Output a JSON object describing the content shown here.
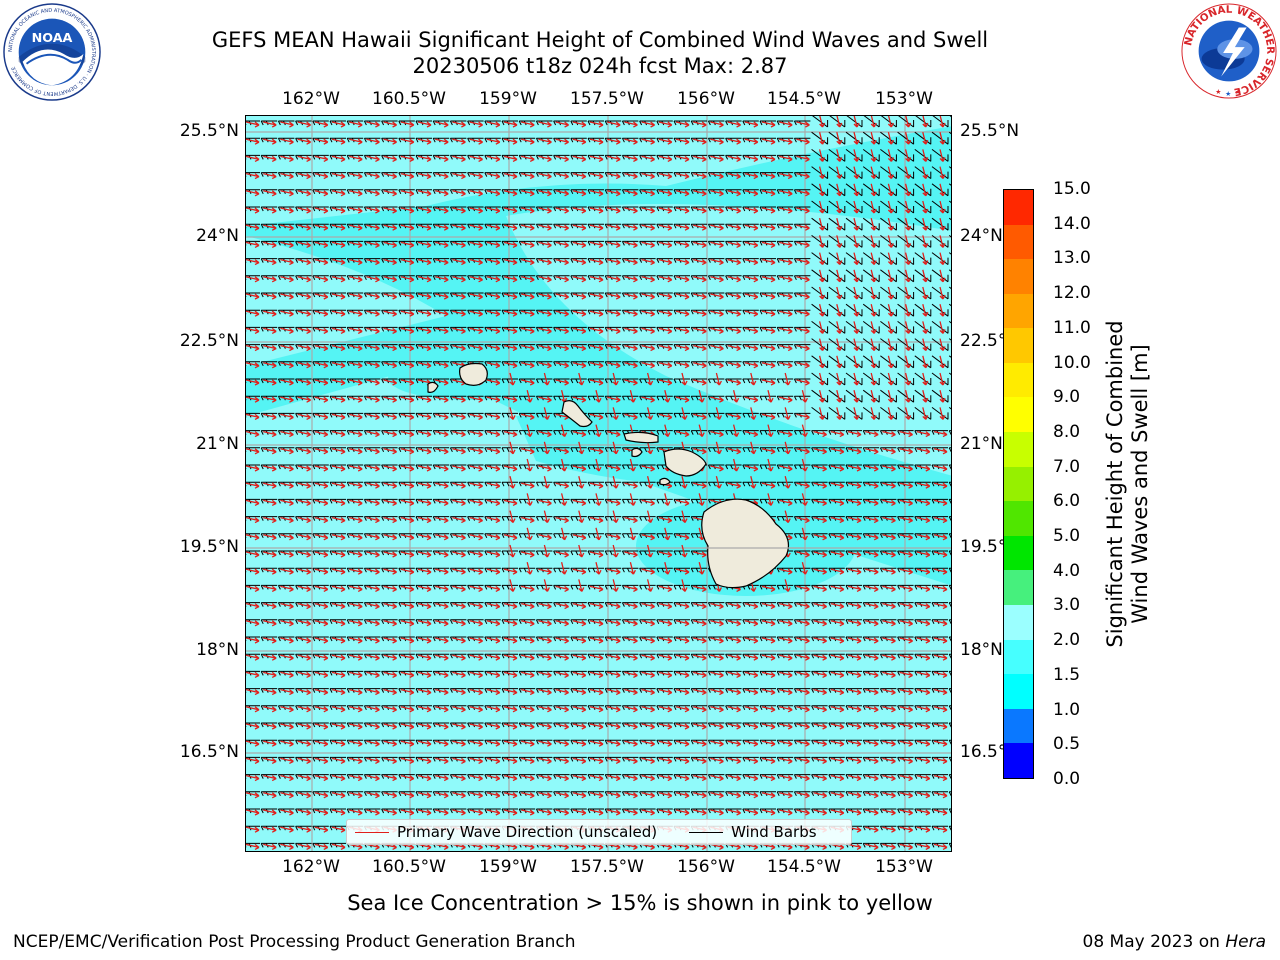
{
  "title_line1": "GEFS MEAN Hawaii Significant Height of Combined Wind Waves and Swell",
  "title_line2": "20230506 t18z 024h fcst   Max: 2.87",
  "lon_labels": [
    "162°W",
    "160.5°W",
    "159°W",
    "157.5°W",
    "156°W",
    "154.5°W",
    "153°W"
  ],
  "lat_labels": [
    "25.5°N",
    "24°N",
    "22.5°N",
    "21°N",
    "19.5°N",
    "18°N",
    "16.5°N"
  ],
  "legend": {
    "wave_label": "Primary Wave Direction (unscaled)",
    "barb_label": "Wind Barbs",
    "wave_color": "#e0201c",
    "barb_color": "#000000"
  },
  "colorbar": {
    "title_line1": "Significant Height of Combined",
    "title_line2": "Wind Waves and Swell [m]",
    "ticks": [
      "0.0",
      "0.5",
      "1.0",
      "1.5",
      "2.0",
      "3.0",
      "4.0",
      "5.0",
      "6.0",
      "7.0",
      "8.0",
      "9.0",
      "10.0",
      "11.0",
      "12.0",
      "13.0",
      "14.0",
      "15.0"
    ],
    "colors": [
      "#0000ff",
      "#0a78ff",
      "#00ffff",
      "#46ffff",
      "#9bffff",
      "#46f07d",
      "#00e600",
      "#50e600",
      "#96f000",
      "#c8ff00",
      "#ffff00",
      "#ffeb00",
      "#ffc800",
      "#ffa500",
      "#ff8200",
      "#ff5a00",
      "#ff2800"
    ]
  },
  "map": {
    "sea_color": "#55f4f4",
    "light_sea_color": "#90fafa",
    "land_color": "#efebdc"
  },
  "ice_note": "Sea Ice Concentration > 15% is shown in pink to yellow",
  "footer_left": "NCEP/EMC/Verification Post Processing Product Generation Branch",
  "footer_date": "08 May 2023 on ",
  "footer_machine": "Hera",
  "logos": {
    "noaa_text": "NOAA",
    "noaa_ring": "NATIONAL OCEANIC AND ATMOSPHERIC ADMINISTRATION · U.S. DEPARTMENT OF COMMERCE",
    "nws_ring": "NATIONAL WEATHER SERVICE"
  }
}
